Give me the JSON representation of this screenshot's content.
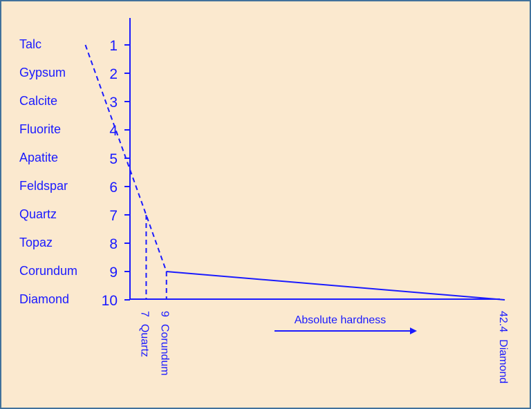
{
  "chart_data": {
    "type": "line",
    "title": "",
    "xlabel": "Absolute hardness",
    "ylabel": "",
    "mohs_scale": [
      {
        "mineral": "Talc",
        "mohs": "1"
      },
      {
        "mineral": "Gypsum",
        "mohs": "2"
      },
      {
        "mineral": "Calcite",
        "mohs": "3"
      },
      {
        "mineral": "Fluorite",
        "mohs": "4"
      },
      {
        "mineral": "Apatite",
        "mohs": "5"
      },
      {
        "mineral": "Feldspar",
        "mohs": "6"
      },
      {
        "mineral": "Quartz",
        "mohs": "7"
      },
      {
        "mineral": "Topaz",
        "mohs": "8"
      },
      {
        "mineral": "Corundum",
        "mohs": "9"
      },
      {
        "mineral": "Diamond",
        "mohs": "10"
      }
    ],
    "x_tick_labels": [
      {
        "value": "7",
        "name": "Quartz"
      },
      {
        "value": "9",
        "name": "Corundum"
      },
      {
        "value": "42.4",
        "name": "Diamond"
      }
    ],
    "series": [
      {
        "style": "dashed",
        "points": [
          [
            1,
            1
          ],
          [
            7,
            7
          ],
          [
            9,
            9
          ]
        ]
      },
      {
        "style": "solid",
        "points": [
          [
            9,
            9
          ],
          [
            42.4,
            10
          ]
        ]
      }
    ],
    "guides": [
      {
        "style": "dashed",
        "x": 7,
        "from_mohs": 7,
        "to_mohs": 10
      },
      {
        "style": "dashed",
        "x": 9,
        "from_mohs": 9,
        "to_mohs": 10
      }
    ],
    "ylim": [
      1,
      10
    ],
    "y_inverted": true,
    "grid": false,
    "colors": {
      "line": "#1a1aff",
      "background": "#fbe9cf",
      "border": "#41719c"
    }
  }
}
